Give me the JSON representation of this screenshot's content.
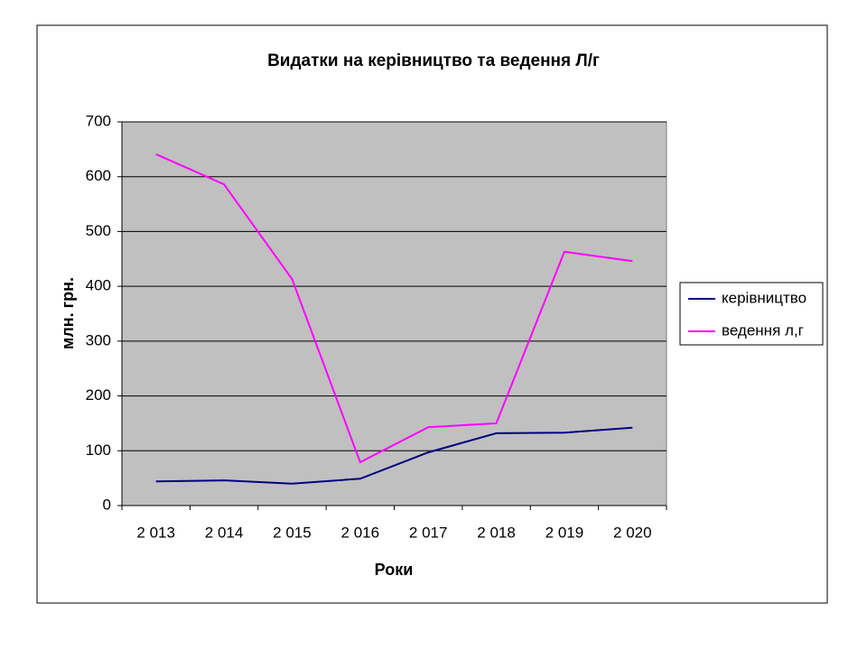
{
  "chart_data": {
    "type": "line",
    "title": "Видатки на керівництво та ведення Л/г",
    "x_label": "Роки",
    "y_label": "млн. грн.",
    "categories": [
      "2 013",
      "2 014",
      "2 015",
      "2 016",
      "2 017",
      "2 018",
      "2 019",
      "2 020"
    ],
    "series": [
      {
        "name": "керівництво",
        "color": "#000080",
        "values": [
          44,
          46,
          40,
          49,
          97,
          132,
          133,
          142
        ]
      },
      {
        "name": "ведення л,г",
        "color": "#ff00ff",
        "values": [
          641,
          586,
          413,
          79,
          143,
          150,
          463,
          446
        ]
      }
    ],
    "ylim": [
      0,
      700
    ],
    "yticks": [
      0,
      100,
      200,
      300,
      400,
      500,
      600,
      700
    ],
    "grid": true,
    "legend": "right"
  }
}
